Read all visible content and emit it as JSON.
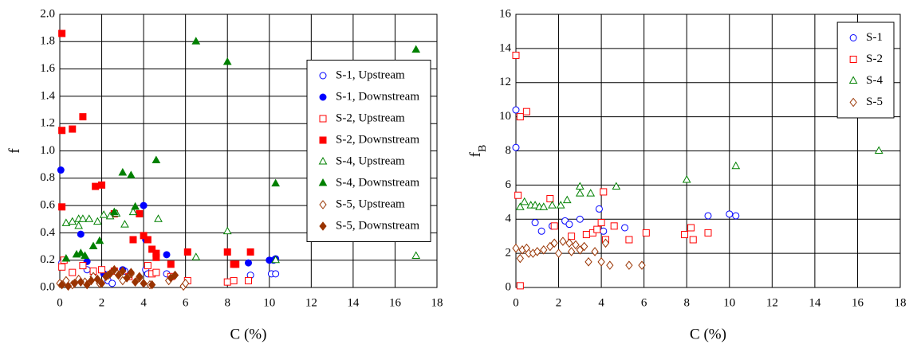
{
  "chart_data": [
    {
      "type": "scatter",
      "xlabel": "C (%)",
      "ylabel": "f",
      "xlim": [
        0,
        18
      ],
      "xticks": [
        0,
        2,
        4,
        6,
        8,
        10,
        12,
        14,
        16,
        18
      ],
      "ylim": [
        0,
        2
      ],
      "yticks": [
        {
          "value": 0,
          "label": "0.0"
        },
        0.2,
        0.4,
        0.6,
        0.8,
        {
          "value": 1,
          "label": "1.0"
        },
        1.2,
        1.4,
        1.6,
        1.8,
        {
          "value": 2,
          "label": "2.0"
        }
      ],
      "grid": true,
      "legend": "center right",
      "series": [
        {
          "name": "S-1, Upstream",
          "color": "#0000ff",
          "marker": "circle",
          "filled": false,
          "x": [
            0.1,
            1.3,
            2.3,
            2.5,
            3.1,
            4.1,
            4.2,
            5.1,
            9.1,
            10.1,
            10.3,
            10.2
          ],
          "y": [
            0.18,
            0.13,
            0.05,
            0.03,
            0.12,
            0.13,
            0.1,
            0.1,
            0.09,
            0.1,
            0.1,
            0.2
          ]
        },
        {
          "name": "S-1, Downstream",
          "color": "#0000ff",
          "marker": "circle",
          "filled": true,
          "x": [
            0.05,
            1.0,
            1.3,
            2.1,
            3.0,
            4.0,
            4.1,
            5.1,
            9.0,
            10.0,
            10.3
          ],
          "y": [
            0.86,
            0.39,
            0.19,
            0.1,
            0.13,
            0.6,
            0.35,
            0.24,
            0.18,
            0.2,
            0.21
          ]
        },
        {
          "name": "S-2, Upstream",
          "color": "#ff0000",
          "marker": "square",
          "filled": false,
          "x": [
            0.1,
            0.2,
            0.6,
            1.1,
            1.6,
            2.0,
            2.6,
            3.3,
            4.2,
            4.4,
            4.6,
            5.3,
            6.1,
            8.0,
            8.3,
            9.0
          ],
          "y": [
            0.15,
            0.2,
            0.11,
            0.16,
            0.12,
            0.13,
            0.12,
            0.08,
            0.16,
            0.1,
            0.11,
            0.08,
            0.05,
            0.04,
            0.05,
            0.05
          ]
        },
        {
          "name": "S-2, Downstream",
          "color": "#ff0000",
          "marker": "square",
          "filled": true,
          "x": [
            0.1,
            0.1,
            0.6,
            1.1,
            0.1,
            1.7,
            2.0,
            2.6,
            3.5,
            3.8,
            4.0,
            4.2,
            4.4,
            4.6,
            4.6,
            5.3,
            6.1,
            8.0,
            8.3,
            8.4,
            9.1
          ],
          "y": [
            1.86,
            1.15,
            1.16,
            1.25,
            0.59,
            0.74,
            0.75,
            0.54,
            0.35,
            0.54,
            0.38,
            0.35,
            0.28,
            0.22,
            0.25,
            0.17,
            0.26,
            0.26,
            0.17,
            0.17,
            0.26
          ]
        },
        {
          "name": "S-4, Upstream",
          "color": "#008000",
          "marker": "triangle",
          "filled": false,
          "x": [
            0.3,
            0.6,
            0.9,
            0.9,
            1.1,
            1.4,
            1.8,
            2.1,
            2.4,
            2.7,
            3.1,
            3.5,
            4.7,
            6.5,
            8.0,
            10.3,
            17.0
          ],
          "y": [
            0.47,
            0.48,
            0.5,
            0.45,
            0.5,
            0.5,
            0.48,
            0.53,
            0.52,
            0.54,
            0.46,
            0.55,
            0.5,
            0.22,
            0.41,
            0.2,
            0.23
          ]
        },
        {
          "name": "S-4, Downstream",
          "color": "#008000",
          "marker": "triangle",
          "filled": true,
          "x": [
            0.3,
            0.8,
            1.0,
            1.2,
            1.6,
            1.9,
            2.6,
            3.0,
            3.4,
            3.6,
            4.6,
            6.5,
            8.0,
            10.3,
            17.0
          ],
          "y": [
            0.21,
            0.24,
            0.25,
            0.23,
            0.3,
            0.34,
            0.55,
            0.84,
            0.82,
            0.59,
            0.93,
            1.8,
            1.65,
            0.76,
            1.74
          ]
        },
        {
          "name": "S-5, Upstream",
          "color": "#993300",
          "marker": "diamond",
          "filled": false,
          "x": [
            0.0,
            0.3,
            0.6,
            0.9,
            1.2,
            1.6,
            1.9,
            2.3,
            2.7,
            3.0,
            3.4,
            3.8,
            4.3,
            5.2,
            5.9,
            6.0
          ],
          "y": [
            0.03,
            0.05,
            0.02,
            0.06,
            0.04,
            0.08,
            0.03,
            0.09,
            0.11,
            0.05,
            0.1,
            0.07,
            0.02,
            0.05,
            0.01,
            0.03
          ]
        },
        {
          "name": "S-5, Downstream",
          "color": "#993300",
          "marker": "diamond",
          "filled": true,
          "x": [
            0.1,
            0.4,
            0.7,
            1.0,
            1.3,
            1.5,
            1.8,
            2.0,
            2.2,
            2.4,
            2.6,
            2.8,
            3.0,
            3.2,
            3.4,
            3.6,
            3.8,
            4.0,
            4.4,
            5.3,
            5.5
          ],
          "y": [
            0.02,
            0.01,
            0.03,
            0.04,
            0.02,
            0.05,
            0.06,
            0.03,
            0.08,
            0.1,
            0.13,
            0.09,
            0.12,
            0.07,
            0.11,
            0.04,
            0.08,
            0.03,
            0.02,
            0.07,
            0.09
          ]
        }
      ]
    },
    {
      "type": "scatter",
      "xlabel": "C (%)",
      "ylabel": "f",
      "ylabel_subscript": "B",
      "xlim": [
        0,
        18
      ],
      "xticks": [
        0,
        2,
        4,
        6,
        8,
        10,
        12,
        14,
        16,
        18
      ],
      "ylim": [
        0,
        16
      ],
      "yticks": [
        0,
        2,
        4,
        6,
        8,
        10,
        12,
        14,
        16
      ],
      "grid": true,
      "legend": "upper right",
      "series": [
        {
          "name": "S-1",
          "color": "#0000ff",
          "marker": "circle",
          "filled": false,
          "x": [
            0.0,
            0.0,
            0.9,
            1.2,
            1.7,
            2.3,
            2.5,
            3.0,
            3.9,
            4.1,
            5.1,
            9.0,
            10.0,
            10.3
          ],
          "y": [
            10.4,
            8.2,
            3.8,
            3.3,
            3.6,
            3.9,
            3.7,
            4.0,
            4.6,
            3.3,
            3.5,
            4.2,
            4.3,
            4.2
          ]
        },
        {
          "name": "S-2",
          "color": "#ff0000",
          "marker": "square",
          "filled": false,
          "x": [
            0.0,
            0.1,
            0.2,
            0.5,
            0.2,
            1.6,
            1.8,
            2.6,
            3.3,
            3.6,
            3.8,
            4.0,
            4.1,
            4.2,
            4.6,
            5.3,
            6.1,
            7.9,
            8.2,
            8.3,
            9.0
          ],
          "y": [
            13.6,
            5.4,
            10.0,
            10.3,
            0.1,
            5.2,
            3.6,
            3.0,
            3.1,
            3.2,
            3.4,
            3.8,
            5.6,
            2.8,
            3.6,
            2.8,
            3.2,
            3.1,
            3.5,
            2.8,
            3.2
          ]
        },
        {
          "name": "S-4",
          "color": "#008000",
          "marker": "triangle",
          "filled": false,
          "x": [
            0.2,
            0.4,
            0.7,
            0.9,
            1.1,
            1.3,
            1.7,
            2.1,
            2.4,
            3.0,
            3.0,
            3.5,
            4.7,
            8.0,
            10.3,
            17.0
          ],
          "y": [
            4.7,
            5.0,
            4.8,
            4.8,
            4.7,
            4.7,
            4.8,
            4.8,
            5.1,
            5.9,
            5.5,
            5.5,
            5.9,
            6.3,
            7.1,
            8.0
          ]
        },
        {
          "name": "S-5",
          "color": "#993300",
          "marker": "diamond",
          "filled": false,
          "x": [
            0.0,
            0.2,
            0.3,
            0.5,
            0.6,
            0.8,
            1.0,
            1.3,
            1.6,
            1.8,
            2.0,
            2.2,
            2.5,
            2.6,
            2.8,
            3.0,
            3.2,
            3.4,
            3.7,
            4.0,
            4.2,
            4.4,
            5.3,
            5.9
          ],
          "y": [
            2.3,
            1.7,
            2.2,
            2.3,
            2.0,
            2.0,
            2.1,
            2.2,
            2.4,
            2.6,
            2.0,
            2.7,
            2.6,
            2.1,
            2.5,
            2.2,
            2.4,
            1.5,
            2.1,
            1.5,
            2.6,
            1.3,
            1.3,
            1.3
          ]
        }
      ]
    }
  ]
}
